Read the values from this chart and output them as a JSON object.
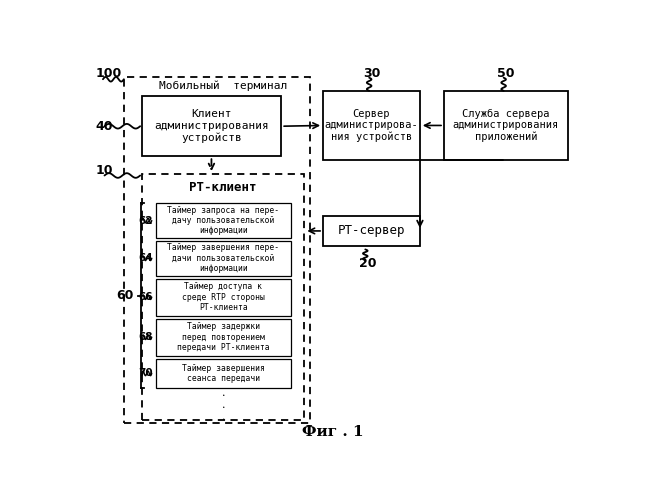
{
  "title": "Фиг . 1",
  "background": "#ffffff",
  "mobile_terminal_label": "Мобильный  терминал",
  "label_100": "100",
  "label_40": "40",
  "label_10": "10",
  "label_60": "60",
  "label_62": "62",
  "label_64": "64",
  "label_66": "66",
  "label_68": "68",
  "label_70": "70",
  "label_30": "30",
  "label_20": "20",
  "label_50": "50",
  "box_client_admin": "Клиент\nадминистрирования\nустройств",
  "box_pt_client": "РТ-клиент",
  "box_timer62": "Таймер запроса на пере-\nдачу пользовательской\nинформации",
  "box_timer64": "Таймер завершения пере-\nдачи пользовательской\nинформации",
  "box_timer66": "Таймер доступа к\nсреде RTP стороны\nРТ-клиента",
  "box_timer68": "Таймер задержки\nперед повторением\nпередачи РТ-клиента",
  "box_timer70": "Таймер завершения\nсеанса передачи",
  "box_server_admin": "Сервер\nадминистрирова-\nния устройств",
  "box_pt_server": "РТ-сервер",
  "box_app_service": "Служба сервера\nадминистрирования\nприложений",
  "dots": ".\n.\n."
}
